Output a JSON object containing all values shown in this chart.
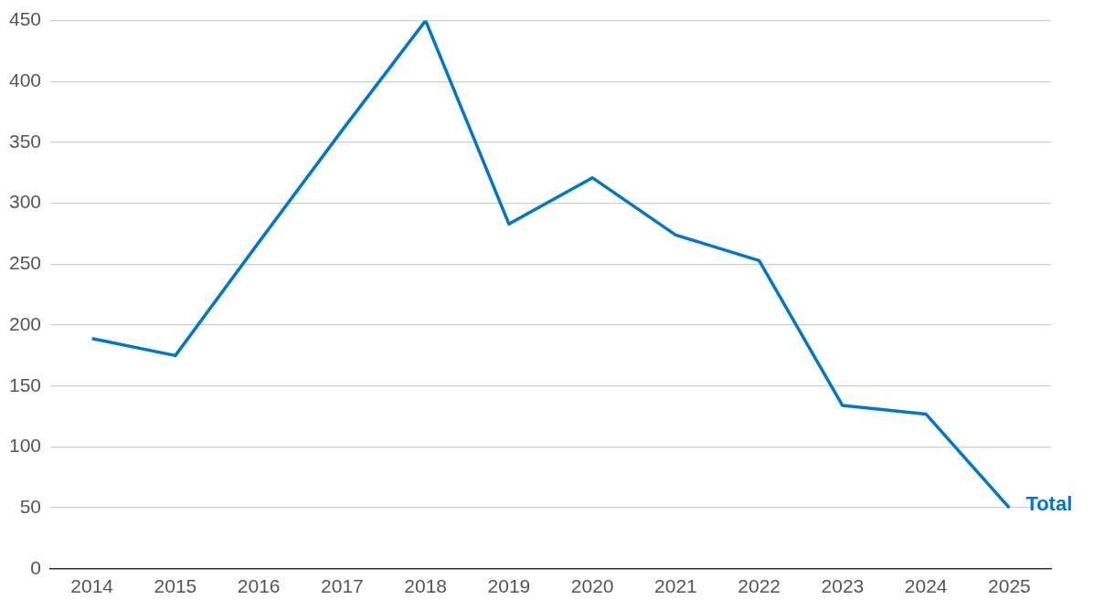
{
  "chart_data": {
    "type": "line",
    "categories": [
      "2014",
      "2015",
      "2016",
      "2017",
      "2018",
      "2019",
      "2020",
      "2021",
      "2022",
      "2023",
      "2024",
      "2025"
    ],
    "series": [
      {
        "name": "Total",
        "color": "#0077c8",
        "values": [
          189,
          175,
          268,
          360,
          450,
          283,
          321,
          274,
          253,
          134,
          127,
          50
        ]
      }
    ],
    "ylim": [
      0,
      450
    ],
    "yticks": [
      0,
      50,
      100,
      150,
      200,
      250,
      300,
      350,
      400,
      450
    ],
    "grid": "y",
    "legend": false,
    "marker": "none",
    "line_style": "solid"
  }
}
